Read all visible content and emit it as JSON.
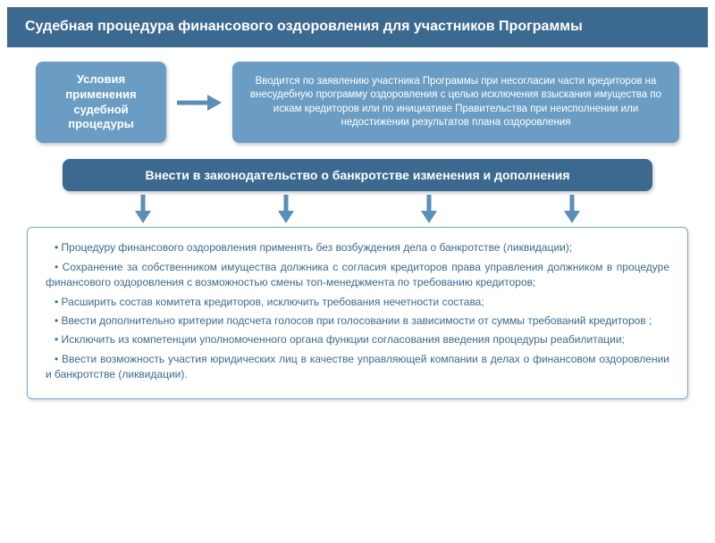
{
  "colors": {
    "header_bg": "#3b698f",
    "pill_bg": "#6b9dc4",
    "text_light": "#ffffff",
    "text_dark": "#3b698f",
    "arrow": "#5a8fb8",
    "border": "#7da5c6"
  },
  "header": {
    "title": "Судебная процедура финансового оздоровления для участников Программы"
  },
  "top_row": {
    "left_label": "Условия применения судебной процедуры",
    "right_text": "Вводится по заявлению участника Программы при несогласии части кредиторов на внесудебную программу оздоровления с целью исключения взыскания имущества по искам кредиторов или по инициативе Правительства при неисполнении или недостижении результатов плана оздоровления"
  },
  "mid_bar": {
    "text": "Внести в законодательство о банкротстве изменения и дополнения"
  },
  "bullets": [
    "• Процедуру финансового оздоровления применять без возбуждения дела о банкротстве (ликвидации);",
    "• Сохранение за собственником имущества должника с согласия кредиторов права управления должником в процедуре финансового оздоровления с возможностью смены топ-менеджмента по требованию кредиторов;",
    "• Расширить состав комитета кредиторов, исключить требования нечетности состава;",
    "• Ввести дополнительно критерии подсчета голосов при голосовании в зависимости от суммы требований кредиторов ;",
    "• Исключить из компетенции уполномоченного органа функции согласования введения процедуры реабилитации;",
    "• Ввести возможность участия юридических лиц в качестве управляющей компании в делах о финансовом оздоровлении и банкротстве (ликвидации)."
  ],
  "arrow_down_count": 4
}
